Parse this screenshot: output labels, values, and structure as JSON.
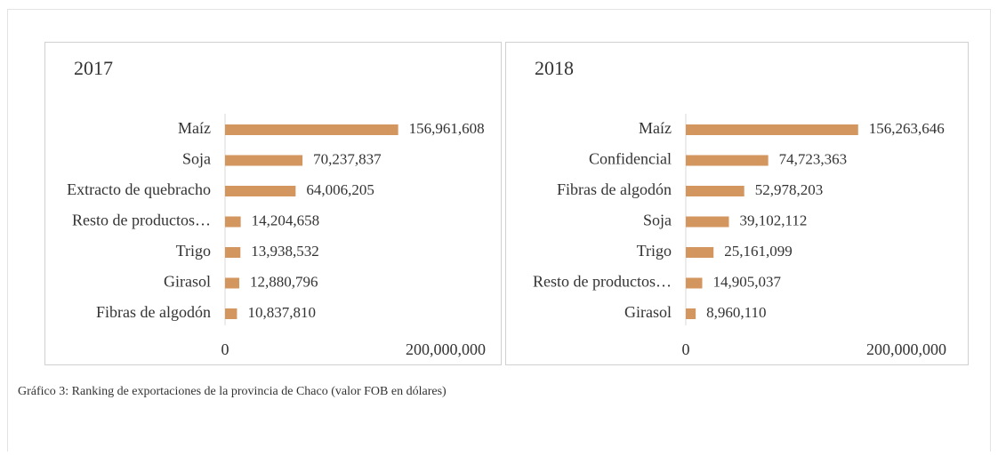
{
  "chart_data": [
    {
      "type": "bar",
      "orientation": "horizontal",
      "title": "2017",
      "color": "#d4965f",
      "categories": [
        "Maíz",
        "Soja",
        "Extracto de quebracho",
        "Resto de productos…",
        "Trigo",
        "Girasol",
        "Fibras de algodón"
      ],
      "values": [
        156961608,
        70237837,
        64006205,
        14204658,
        13938532,
        12880796,
        10837810
      ],
      "value_labels": [
        "156,961,608",
        "70,237,837",
        "64,006,205",
        "14,204,658",
        "13,938,532",
        "12,880,796",
        "10,837,810"
      ],
      "xlim": [
        0,
        200000000
      ],
      "xticks": [
        0,
        {
          "value": 200000000,
          "label": "200,000,000"
        }
      ]
    },
    {
      "type": "bar",
      "orientation": "horizontal",
      "title": "2018",
      "color": "#d4965f",
      "categories": [
        "Maíz",
        "Confidencial",
        "Fibras de algodón",
        "Soja",
        "Trigo",
        "Resto de productos…",
        "Girasol"
      ],
      "values": [
        156263646,
        74723363,
        52978203,
        39102112,
        25161099,
        14905037,
        8960110
      ],
      "value_labels": [
        "156,263,646",
        "74,723,363",
        "52,978,203",
        "39,102,112",
        "25,161,099",
        "14,905,037",
        "8,960,110"
      ],
      "xlim": [
        0,
        200000000
      ],
      "xticks": [
        0,
        {
          "value": 200000000,
          "label": "200,000,000"
        }
      ]
    }
  ],
  "caption": "Gráfico 3: Ranking de exportaciones de la provincia de Chaco (valor FOB en dólares)"
}
